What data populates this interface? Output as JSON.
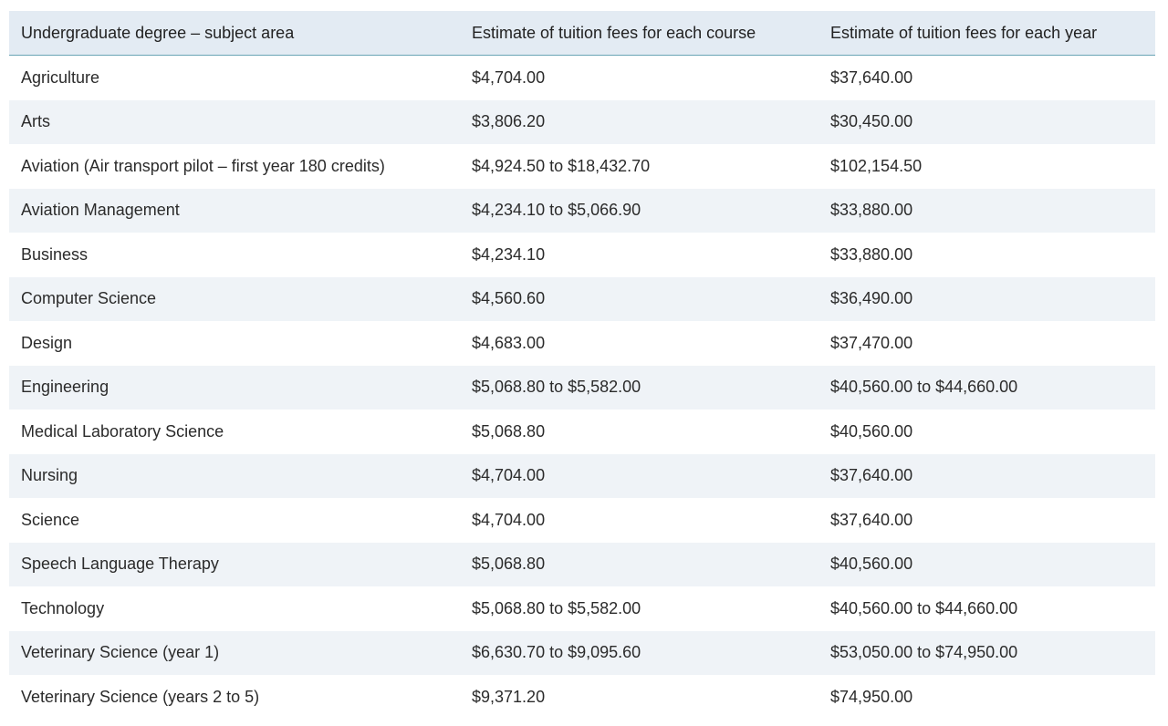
{
  "table": {
    "headers": [
      "Undergraduate degree – subject area",
      "Estimate of tuition fees for each course",
      "Estimate of tuition fees for each year"
    ],
    "rows": [
      [
        "Agriculture",
        "$4,704.00",
        "$37,640.00"
      ],
      [
        "Arts",
        "$3,806.20",
        "$30,450.00"
      ],
      [
        "Aviation (Air transport pilot – first year 180 credits)",
        "$4,924.50 to $18,432.70",
        "$102,154.50"
      ],
      [
        "Aviation Management",
        "$4,234.10 to $5,066.90",
        "$33,880.00"
      ],
      [
        "Business",
        "$4,234.10",
        "$33,880.00"
      ],
      [
        "Computer Science",
        "$4,560.60",
        "$36,490.00"
      ],
      [
        "Design",
        "$4,683.00",
        "$37,470.00"
      ],
      [
        "Engineering",
        "$5,068.80 to $5,582.00",
        "$40,560.00 to $44,660.00"
      ],
      [
        "Medical Laboratory Science",
        "$5,068.80",
        "$40,560.00"
      ],
      [
        "Nursing",
        "$4,704.00",
        "$37,640.00"
      ],
      [
        "Science",
        "$4,704.00",
        "$37,640.00"
      ],
      [
        "Speech Language Therapy",
        "$5,068.80",
        "$40,560.00"
      ],
      [
        "Technology",
        "$5,068.80 to $5,582.00",
        "$40,560.00 to $44,660.00"
      ],
      [
        "Veterinary Science (year 1)",
        "$6,630.70 to $9,095.60",
        "$53,050.00 to $74,950.00"
      ],
      [
        "Veterinary Science (years 2 to 5)",
        "$9,371.20",
        "$74,950.00"
      ]
    ]
  }
}
